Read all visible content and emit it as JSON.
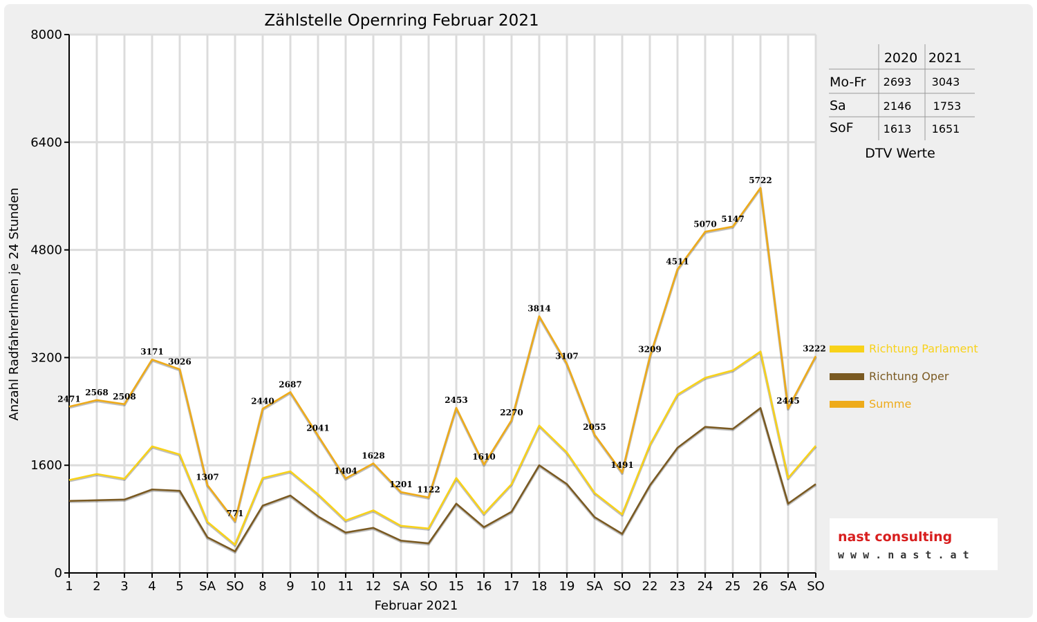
{
  "chart_data": {
    "type": "line",
    "title": "Zählstelle Opernring Februar 2021",
    "xlabel": "Februar 2021",
    "ylabel": "Anzahl RadfahrerInnen je 24 Stunden",
    "ylim": [
      0,
      8000
    ],
    "yticks": [
      0,
      1600,
      3200,
      4800,
      6400,
      8000
    ],
    "grid": true,
    "legend_position": "right",
    "categories": [
      "1",
      "2",
      "3",
      "4",
      "5",
      "SA",
      "SO",
      "8",
      "9",
      "10",
      "11",
      "12",
      "SA",
      "SO",
      "15",
      "16",
      "17",
      "18",
      "19",
      "SA",
      "SO",
      "22",
      "23",
      "24",
      "25",
      "26",
      "SA",
      "SO"
    ],
    "weekend_colors": {
      "SA": "#000000",
      "SO": "#ff0000"
    },
    "series": [
      {
        "name": "Richtung Parlament",
        "color": "#f8d21a",
        "values": [
          1380,
          1470,
          1400,
          1880,
          1760,
          760,
          420,
          1410,
          1510,
          1170,
          780,
          930,
          700,
          660,
          1410,
          880,
          1320,
          2190,
          1790,
          1190,
          870,
          1900,
          2650,
          2900,
          3010,
          3290,
          1410,
          1890
        ]
      },
      {
        "name": "Richtung Oper",
        "color": "#7a5a22",
        "values": [
          1070,
          1080,
          1090,
          1240,
          1220,
          530,
          320,
          1000,
          1150,
          840,
          600,
          670,
          480,
          440,
          1030,
          680,
          910,
          1600,
          1320,
          830,
          580,
          1300,
          1860,
          2170,
          2140,
          2450,
          1030,
          1320
        ]
      },
      {
        "name": "Summe",
        "color": "#eeab1a",
        "values": [
          2471,
          2568,
          2508,
          3171,
          3026,
          1307,
          771,
          2440,
          2687,
          2041,
          1404,
          1628,
          1201,
          1122,
          2453,
          1610,
          2270,
          3814,
          3107,
          2055,
          1491,
          3209,
          4511,
          5070,
          5147,
          5722,
          2445,
          3222
        ],
        "labels": [
          "2471",
          "2568",
          "2508",
          "3171",
          "3026",
          "1307",
          "771",
          "2440",
          "2687",
          "2041",
          "1404",
          "1628",
          "1201",
          "1122",
          "2453",
          "1610",
          "2270",
          "3814",
          "3107",
          "2055",
          "1491",
          "3209",
          "4511",
          "5070",
          "5147",
          "5722",
          "2445",
          "3222"
        ]
      }
    ],
    "dtv_table": {
      "headers": [
        "2020",
        "2021"
      ],
      "rows": [
        {
          "label": "Mo-Fr",
          "v2020": "2693",
          "v2021": "3043"
        },
        {
          "label": "Sa",
          "v2020": "2146",
          "v2021": "1753"
        },
        {
          "label": "SoF",
          "v2020": "1613",
          "v2021": "1651"
        }
      ],
      "caption": "DTV Werte"
    }
  },
  "logo": {
    "name": "nast consulting",
    "url": "w w w . n a s t . a t"
  }
}
